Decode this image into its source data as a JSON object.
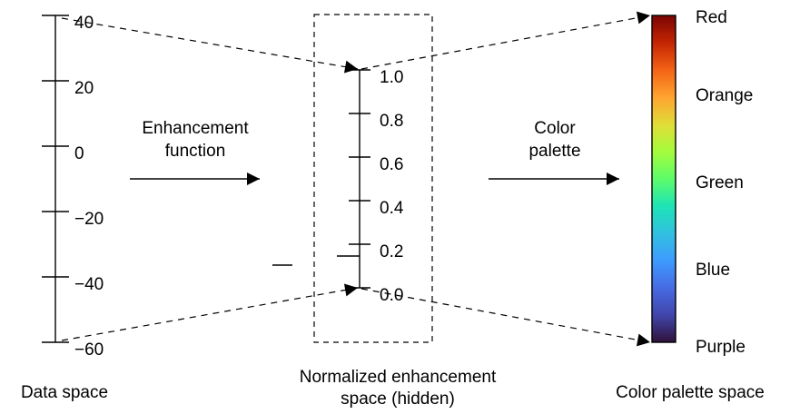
{
  "data_space": {
    "caption": "Data space",
    "ticks": [
      "40",
      "20",
      "0",
      "−20",
      "−40",
      "−60"
    ]
  },
  "enhancement": {
    "caption_line1": "Enhancement",
    "caption_line2": "function"
  },
  "normalized_space": {
    "caption_line1": "Normalized enhancement",
    "caption_line2": "space (hidden)",
    "ticks": [
      "1.0",
      "0.8",
      "0.6",
      "0.4",
      "0.2",
      "0.0"
    ]
  },
  "palette": {
    "caption_line1": "Color",
    "caption_line2": "palette"
  },
  "palette_space": {
    "caption": "Color palette space",
    "labels": [
      "Red",
      "Orange",
      "Green",
      "Blue",
      "Purple"
    ],
    "gradient_colors": [
      "#7a0403",
      "#c42503",
      "#f36315",
      "#fea331",
      "#e1dd37",
      "#a4fc3c",
      "#5dfc6a",
      "#1de4b6",
      "#31c0e0",
      "#3e9bfe",
      "#466be3",
      "#4145ab",
      "#30123b"
    ]
  }
}
